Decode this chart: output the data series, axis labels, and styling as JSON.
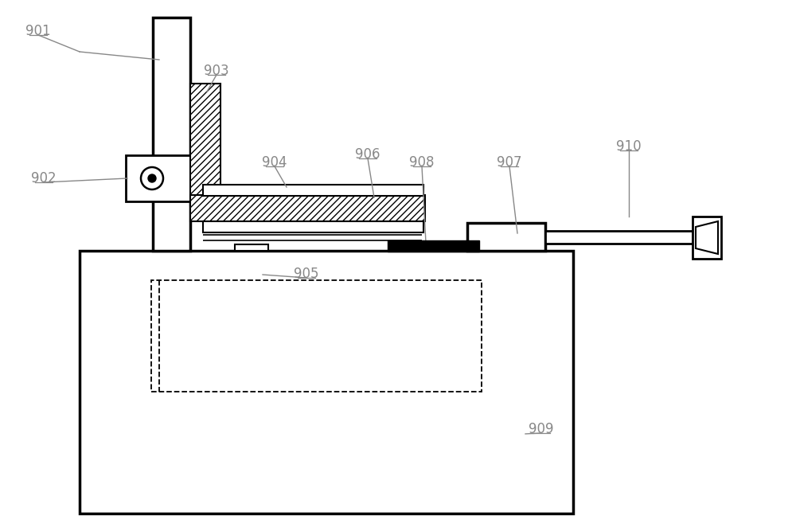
{
  "bg_color": "#ffffff",
  "line_color": "#000000",
  "label_color": "#888888",
  "fig_width": 10.0,
  "fig_height": 6.62,
  "dpi": 100
}
